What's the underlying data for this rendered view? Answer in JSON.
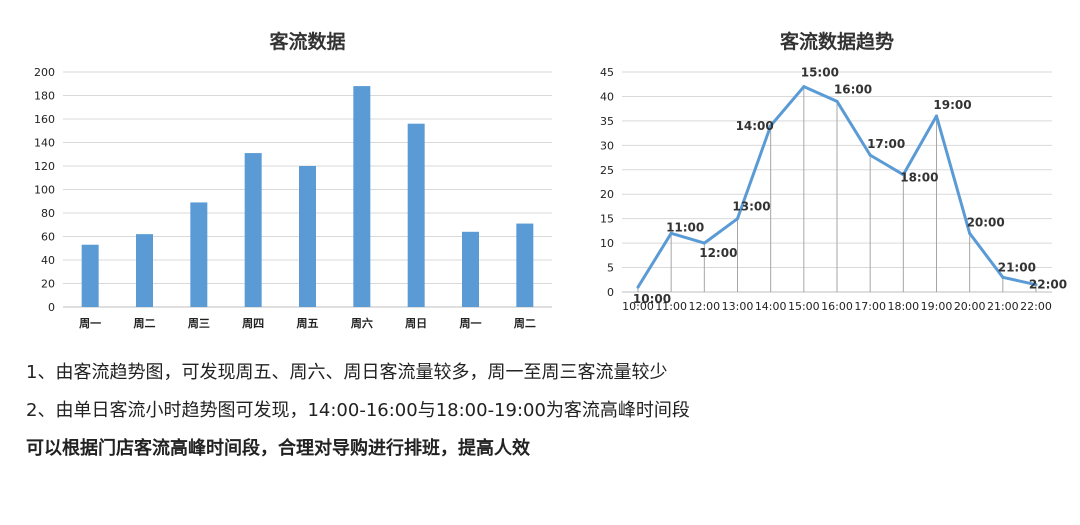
{
  "chart_data": [
    {
      "type": "bar",
      "title": "客流数据",
      "categories": [
        "周一",
        "周二",
        "周三",
        "周四",
        "周五",
        "周六",
        "周日",
        "周一",
        "周二"
      ],
      "values": [
        53,
        62,
        89,
        131,
        120,
        188,
        156,
        64,
        71
      ],
      "ylim": [
        0,
        200
      ],
      "yticks": [
        0,
        20,
        40,
        60,
        80,
        100,
        120,
        140,
        160,
        180,
        200
      ],
      "xlabel": "",
      "ylabel": "",
      "color": "#5b9bd5",
      "grid": true
    },
    {
      "type": "line",
      "title": "客流数据趋势",
      "x": [
        "10:00",
        "11:00",
        "12:00",
        "13:00",
        "14:00",
        "15:00",
        "16:00",
        "17:00",
        "18:00",
        "19:00",
        "20:00",
        "21:00",
        "22:00"
      ],
      "values": [
        1,
        12,
        10,
        15,
        34,
        42,
        39,
        28,
        24,
        36,
        12,
        3,
        1.5
      ],
      "ylim": [
        0,
        45
      ],
      "yticks": [
        0,
        5,
        10,
        15,
        20,
        25,
        30,
        35,
        40,
        45
      ],
      "xlabel": "",
      "ylabel": "",
      "color": "#5b9bd5",
      "grid": true,
      "drop_lines": true
    }
  ],
  "notes": [
    "1、由客流趋势图，可发现周五、周六、周日客流量较多，周一至周三客流量较少",
    "2、由单日客流小时趋势图可发现，14:00-16:00与18:00-19:00为客流高峰时间段"
  ],
  "conclusion": "可以根据门店客流高峰时间段，合理对导购进行排班，提高人效"
}
